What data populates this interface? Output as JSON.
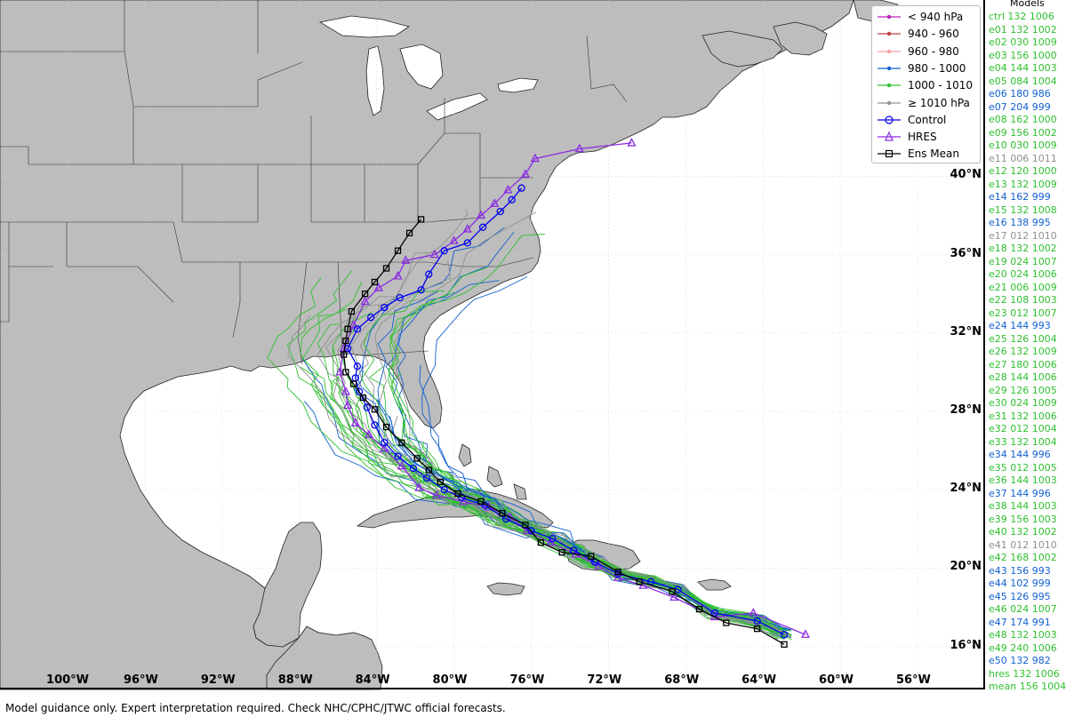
{
  "map": {
    "lat_labels": [
      "40°N",
      "36°N",
      "32°N",
      "28°N",
      "24°N",
      "20°N",
      "16°N"
    ],
    "lon_labels": [
      "100°W",
      "96°W",
      "92°W",
      "88°W",
      "84°W",
      "80°W",
      "76°W",
      "72°W",
      "68°W",
      "64°W",
      "60°W",
      "56°W"
    ],
    "land_color": "#bdbdbd",
    "ocean_color": "#ffffff",
    "extent": {
      "lon_min": -103.5,
      "lon_max": -52.5,
      "lat_min": 13.8,
      "lat_max": 49.0
    }
  },
  "legend": {
    "items": [
      {
        "label": "< 940 hPa",
        "color": "#c020c0",
        "style": "dot"
      },
      {
        "label": "940 - 960",
        "color": "#c04040",
        "style": "dot"
      },
      {
        "label": "960 - 980",
        "color": "#f0a0a0",
        "style": "dot"
      },
      {
        "label": "980 - 1000",
        "color": "#1060d0",
        "style": "dot"
      },
      {
        "label": "1000 - 1010",
        "color": "#30c030",
        "style": "dot"
      },
      {
        "label": "≥ 1010 hPa",
        "color": "#909090",
        "style": "dot"
      },
      {
        "label": "Control",
        "color": "#0000ee",
        "style": "circle"
      },
      {
        "label": "HRES",
        "color": "#8a2be2",
        "style": "triangle"
      },
      {
        "label": "Ens Mean",
        "color": "#000000",
        "style": "square"
      }
    ]
  },
  "models": {
    "title": "Models",
    "items": [
      {
        "text": "ctrl 132 1006",
        "color": "#30c030"
      },
      {
        "text": "e01 132 1002",
        "color": "#30c030"
      },
      {
        "text": "e02 030 1009",
        "color": "#30c030"
      },
      {
        "text": "e03 156 1000",
        "color": "#30c030"
      },
      {
        "text": "e04 144 1003",
        "color": "#30c030"
      },
      {
        "text": "e05 084 1004",
        "color": "#30c030"
      },
      {
        "text": "e06 180 986",
        "color": "#1060d0"
      },
      {
        "text": "e07 204 999",
        "color": "#1060d0"
      },
      {
        "text": "e08 162 1000",
        "color": "#30c030"
      },
      {
        "text": "e09 156 1002",
        "color": "#30c030"
      },
      {
        "text": "e10 030 1009",
        "color": "#30c030"
      },
      {
        "text": "e11 006 1011",
        "color": "#909090"
      },
      {
        "text": "e12 120 1000",
        "color": "#30c030"
      },
      {
        "text": "e13 132 1009",
        "color": "#30c030"
      },
      {
        "text": "e14 162 999",
        "color": "#1060d0"
      },
      {
        "text": "e15 132 1008",
        "color": "#30c030"
      },
      {
        "text": "e16 138 995",
        "color": "#1060d0"
      },
      {
        "text": "e17 012 1010",
        "color": "#909090"
      },
      {
        "text": "e18 132 1002",
        "color": "#30c030"
      },
      {
        "text": "e19 024 1007",
        "color": "#30c030"
      },
      {
        "text": "e20 024 1006",
        "color": "#30c030"
      },
      {
        "text": "e21 006 1009",
        "color": "#30c030"
      },
      {
        "text": "e22 108 1003",
        "color": "#30c030"
      },
      {
        "text": "e23 012 1007",
        "color": "#30c030"
      },
      {
        "text": "e24 144 993",
        "color": "#1060d0"
      },
      {
        "text": "e25 126 1004",
        "color": "#30c030"
      },
      {
        "text": "e26 132 1009",
        "color": "#30c030"
      },
      {
        "text": "e27 180 1006",
        "color": "#30c030"
      },
      {
        "text": "e28 144 1006",
        "color": "#30c030"
      },
      {
        "text": "e29 126 1005",
        "color": "#30c030"
      },
      {
        "text": "e30 024 1009",
        "color": "#30c030"
      },
      {
        "text": "e31 132 1006",
        "color": "#30c030"
      },
      {
        "text": "e32 012 1004",
        "color": "#30c030"
      },
      {
        "text": "e33 132 1004",
        "color": "#30c030"
      },
      {
        "text": "e34 144 996",
        "color": "#1060d0"
      },
      {
        "text": "e35 012 1005",
        "color": "#30c030"
      },
      {
        "text": "e36 144 1003",
        "color": "#30c030"
      },
      {
        "text": "e37 144 996",
        "color": "#1060d0"
      },
      {
        "text": "e38 144 1003",
        "color": "#30c030"
      },
      {
        "text": "e39 156 1003",
        "color": "#30c030"
      },
      {
        "text": "e40 132 1002",
        "color": "#30c030"
      },
      {
        "text": "e41 012 1010",
        "color": "#909090"
      },
      {
        "text": "e42 168 1002",
        "color": "#30c030"
      },
      {
        "text": "e43 156 993",
        "color": "#1060d0"
      },
      {
        "text": "e44 102 999",
        "color": "#1060d0"
      },
      {
        "text": "e45 126 995",
        "color": "#1060d0"
      },
      {
        "text": "e46 024 1007",
        "color": "#30c030"
      },
      {
        "text": "e47 174 991",
        "color": "#1060d0"
      },
      {
        "text": "e48 132 1003",
        "color": "#30c030"
      },
      {
        "text": "e49 240 1006",
        "color": "#30c030"
      },
      {
        "text": "e50 132 982",
        "color": "#1060d0"
      },
      {
        "text": "hres 132 1006",
        "color": "#30c030"
      },
      {
        "text": "mean 156 1004",
        "color": "#30c030"
      }
    ]
  },
  "tracks": {
    "control": [
      [
        -62.9,
        16.6
      ],
      [
        -64.3,
        17.3
      ],
      [
        -66.5,
        17.7
      ],
      [
        -68.4,
        18.9
      ],
      [
        -69.8,
        19.3
      ],
      [
        -71.5,
        19.7
      ],
      [
        -72.7,
        20.3
      ],
      [
        -73.8,
        20.9
      ],
      [
        -74.9,
        21.5
      ],
      [
        -76.0,
        21.9
      ],
      [
        -77.3,
        22.5
      ],
      [
        -78.4,
        23.2
      ],
      [
        -79.6,
        23.6
      ],
      [
        -80.5,
        24.0
      ],
      [
        -81.4,
        24.6
      ],
      [
        -82.1,
        25.1
      ],
      [
        -82.9,
        25.7
      ],
      [
        -83.6,
        26.4
      ],
      [
        -84.1,
        27.3
      ],
      [
        -84.5,
        28.2
      ],
      [
        -84.9,
        29.0
      ],
      [
        -85.1,
        29.7
      ],
      [
        -85.0,
        30.3
      ],
      [
        -85.5,
        31.2
      ],
      [
        -85.0,
        32.2
      ],
      [
        -84.3,
        32.8
      ],
      [
        -83.6,
        33.3
      ],
      [
        -82.8,
        33.8
      ],
      [
        -81.7,
        34.2
      ],
      [
        -81.3,
        35.0
      ],
      [
        -80.5,
        36.2
      ],
      [
        -79.3,
        36.6
      ],
      [
        -78.5,
        37.4
      ],
      [
        -77.6,
        38.2
      ],
      [
        -77.0,
        38.8
      ],
      [
        -76.5,
        39.4
      ]
    ],
    "hres": [
      [
        -61.8,
        16.6
      ],
      [
        -64.5,
        17.7
      ],
      [
        -66.5,
        17.5
      ],
      [
        -68.6,
        18.5
      ],
      [
        -70.2,
        19.1
      ],
      [
        -71.5,
        19.5
      ],
      [
        -72.5,
        20.1
      ],
      [
        -73.7,
        20.7
      ],
      [
        -75.0,
        21.3
      ],
      [
        -76.2,
        21.9
      ],
      [
        -77.1,
        22.6
      ],
      [
        -78.2,
        23.1
      ],
      [
        -79.5,
        23.4
      ],
      [
        -80.9,
        23.7
      ],
      [
        -81.8,
        24.1
      ],
      [
        -82.7,
        25.2
      ],
      [
        -83.6,
        26.1
      ],
      [
        -84.4,
        26.8
      ],
      [
        -85.1,
        27.4
      ],
      [
        -85.5,
        28.3
      ],
      [
        -85.6,
        29.0
      ],
      [
        -85.9,
        30.0
      ],
      [
        -85.7,
        31.2
      ],
      [
        -85.2,
        32.4
      ],
      [
        -84.6,
        33.6
      ],
      [
        -83.9,
        34.3
      ],
      [
        -82.9,
        34.9
      ],
      [
        -82.5,
        35.7
      ],
      [
        -81.0,
        36.0
      ],
      [
        -80.0,
        36.7
      ],
      [
        -79.3,
        37.3
      ],
      [
        -78.6,
        38.0
      ],
      [
        -77.9,
        38.6
      ],
      [
        -77.2,
        39.3
      ],
      [
        -76.3,
        40.1
      ],
      [
        -75.8,
        40.9
      ],
      [
        -73.5,
        41.4
      ],
      [
        -70.8,
        41.7
      ]
    ],
    "ensmean": [
      [
        -62.9,
        16.1
      ],
      [
        -64.3,
        16.9
      ],
      [
        -65.9,
        17.2
      ],
      [
        -67.3,
        17.9
      ],
      [
        -68.7,
        18.8
      ],
      [
        -70.4,
        19.3
      ],
      [
        -71.5,
        19.8
      ],
      [
        -72.9,
        20.6
      ],
      [
        -74.4,
        20.8
      ],
      [
        -75.5,
        21.3
      ],
      [
        -76.3,
        22.2
      ],
      [
        -77.5,
        22.8
      ],
      [
        -78.6,
        23.4
      ],
      [
        -79.8,
        23.8
      ],
      [
        -80.7,
        24.4
      ],
      [
        -81.3,
        25.0
      ],
      [
        -81.9,
        25.6
      ],
      [
        -82.7,
        26.4
      ],
      [
        -83.5,
        27.2
      ],
      [
        -84.1,
        28.1
      ],
      [
        -84.7,
        28.7
      ],
      [
        -85.2,
        29.4
      ],
      [
        -85.6,
        30.0
      ],
      [
        -85.7,
        30.9
      ],
      [
        -85.6,
        31.6
      ],
      [
        -85.5,
        32.2
      ],
      [
        -85.3,
        33.1
      ],
      [
        -84.6,
        34.0
      ],
      [
        -84.1,
        34.6
      ],
      [
        -83.5,
        35.3
      ],
      [
        -82.9,
        36.2
      ],
      [
        -82.3,
        37.1
      ],
      [
        -81.7,
        37.8
      ]
    ]
  },
  "disclaimer": "Model guidance only. Expert interpretation required. Check NHC/CPHC/JTWC official forecasts."
}
